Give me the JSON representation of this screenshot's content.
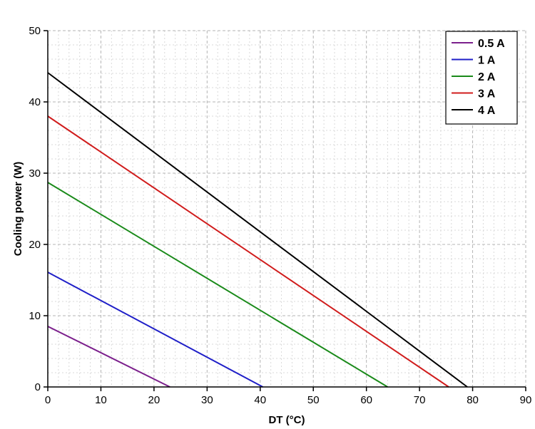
{
  "chart_data": {
    "type": "line",
    "title": "",
    "xlabel": "DT (°C)",
    "ylabel": "Cooling power (W)",
    "xlim": [
      0,
      90
    ],
    "ylim": [
      0,
      50
    ],
    "x_ticks": [
      0,
      10,
      20,
      30,
      40,
      50,
      60,
      70,
      80,
      90
    ],
    "y_ticks": [
      0,
      10,
      20,
      30,
      40,
      50
    ],
    "x_minor_step": 2,
    "y_minor_step": 2,
    "grid": true,
    "legend_position": "top-right",
    "series": [
      {
        "name": "0.5 A",
        "color": "#7b1f8c",
        "x": [
          0,
          23
        ],
        "y": [
          8.5,
          0
        ]
      },
      {
        "name": "1 A",
        "color": "#1f1fc8",
        "x": [
          0,
          40.5
        ],
        "y": [
          16.1,
          0
        ]
      },
      {
        "name": "2 A",
        "color": "#1a8a1a",
        "x": [
          0,
          64
        ],
        "y": [
          28.7,
          0
        ]
      },
      {
        "name": "3 A",
        "color": "#d01c1c",
        "x": [
          0,
          75.5
        ],
        "y": [
          38,
          0
        ]
      },
      {
        "name": "4 A",
        "color": "#000000",
        "x": [
          0,
          79
        ],
        "y": [
          44.1,
          0
        ]
      }
    ]
  }
}
